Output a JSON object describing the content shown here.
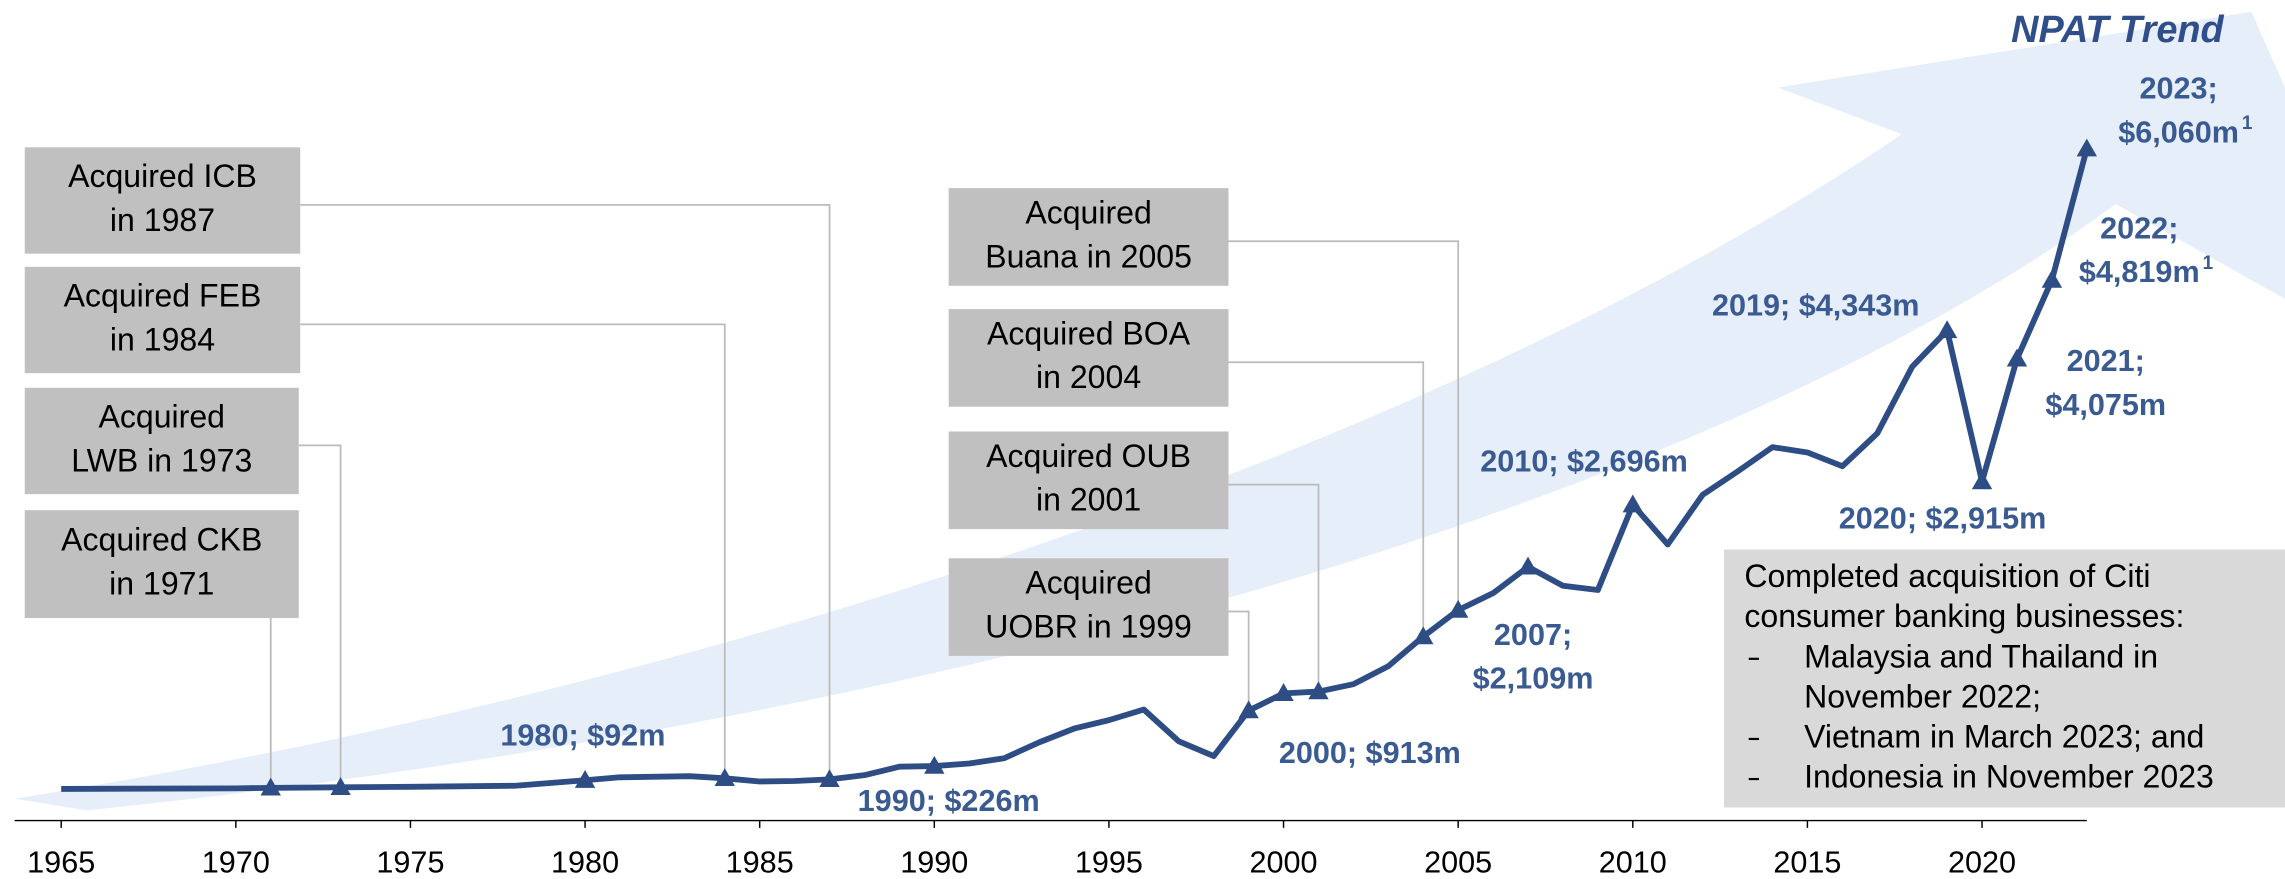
{
  "chart_data": {
    "type": "line",
    "title": "NPAT Trend",
    "color": "#2E4D85",
    "x": [
      1965,
      1970,
      1971,
      1973,
      1975,
      1978,
      1980,
      1981,
      1983,
      1984,
      1985,
      1986,
      1987,
      1988,
      1989,
      1990,
      1991,
      1992,
      1993,
      1994,
      1995,
      1996,
      1997,
      1998,
      1999,
      2000,
      2001,
      2002,
      2003,
      2004,
      2005,
      2006,
      2007,
      2008,
      2009,
      2010,
      2011,
      2012,
      2013,
      2014,
      2015,
      2016,
      2017,
      2018,
      2019,
      2020,
      2021,
      2022,
      2023
    ],
    "values": [
      10,
      15,
      20,
      25,
      30,
      40,
      92,
      120,
      130,
      110,
      80,
      85,
      100,
      140,
      220,
      226,
      250,
      300,
      450,
      580,
      660,
      760,
      460,
      320,
      750,
      913,
      930,
      1000,
      1170,
      1450,
      1700,
      1860,
      2109,
      1930,
      1890,
      2696,
      2320,
      2790,
      3010,
      3240,
      3190,
      3060,
      3370,
      4000,
      4343,
      2915,
      4075,
      4819,
      6060
    ],
    "xlim": [
      1965,
      2023
    ],
    "xticks": [
      1965,
      1970,
      1975,
      1980,
      1985,
      1990,
      1995,
      2000,
      2005,
      2010,
      2015,
      2020
    ],
    "point_labels": [
      {
        "x": 1980,
        "lines": [
          "1980; $92m"
        ]
      },
      {
        "x": 1990,
        "lines": [
          "1990; $226m"
        ]
      },
      {
        "x": 2000,
        "lines": [
          "2000; $913m"
        ]
      },
      {
        "x": 2007,
        "lines": [
          "2007;",
          "$2,109m"
        ]
      },
      {
        "x": 2010,
        "lines": [
          "2010; $2,696m"
        ]
      },
      {
        "x": 2019,
        "lines": [
          "2019; $4,343m"
        ]
      },
      {
        "x": 2020,
        "lines": [
          "2020; $2,915m"
        ]
      },
      {
        "x": 2021,
        "lines": [
          "2021;",
          "$4,075m"
        ]
      },
      {
        "x": 2022,
        "lines": [
          "2022;",
          "$4,819m"
        ],
        "sup": "1"
      },
      {
        "x": 2023,
        "lines": [
          "2023;",
          "$6,060m"
        ],
        "sup": "1"
      }
    ],
    "acquisitions": [
      {
        "x": 1987,
        "lines": [
          "Acquired ICB",
          "in 1987"
        ]
      },
      {
        "x": 1984,
        "lines": [
          "Acquired FEB",
          "in 1984"
        ]
      },
      {
        "x": 1973,
        "lines": [
          "Acquired",
          "LWB in 1973"
        ]
      },
      {
        "x": 1971,
        "lines": [
          "Acquired CKB",
          "in 1971"
        ]
      },
      {
        "x": 2005,
        "lines": [
          "Acquired",
          "Buana in 2005"
        ]
      },
      {
        "x": 2004,
        "lines": [
          "Acquired BOA",
          "in 2004"
        ]
      },
      {
        "x": 2001,
        "lines": [
          "Acquired OUB",
          "in 2001"
        ]
      },
      {
        "x": 1999,
        "lines": [
          "Acquired",
          "UOBR in 1999"
        ]
      }
    ],
    "note": {
      "lines": [
        "Completed acquisition of Citi",
        "consumer banking businesses:"
      ],
      "bullets": [
        [
          "Malaysia and Thailand in",
          "November 2022;"
        ],
        [
          "Vietnam in March 2023; and"
        ],
        [
          "Indonesia in November 2023"
        ]
      ]
    }
  }
}
